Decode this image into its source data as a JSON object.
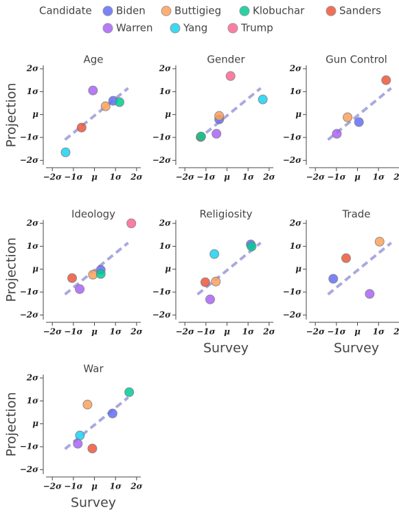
{
  "legend": {
    "title": "Candidate",
    "entries": [
      {
        "name": "Biden",
        "color": "#636efa"
      },
      {
        "name": "Buttigieg",
        "color": "#ffa15a"
      },
      {
        "name": "Klobuchar",
        "color": "#00cc96"
      },
      {
        "name": "Sanders",
        "color": "#ef553b"
      },
      {
        "name": "Warren",
        "color": "#ab63fa"
      },
      {
        "name": "Yang",
        "color": "#19d3f3"
      },
      {
        "name": "Trump",
        "color": "#ff6692"
      }
    ]
  },
  "chart_data": [
    {
      "type": "scatter",
      "title": "Age",
      "ylabel": "Projection",
      "xlim": [
        -2.3,
        2.2
      ],
      "ylim": [
        -2.2,
        2.15
      ],
      "xticks": [
        {
          "value": -2,
          "label": "−2σ"
        },
        {
          "value": -1,
          "label": "−1σ"
        },
        {
          "value": 0,
          "label": "μ"
        },
        {
          "value": 1,
          "label": "1σ"
        },
        {
          "value": 2,
          "label": "2σ"
        }
      ],
      "yticks": [
        {
          "value": -2,
          "label": "−2σ"
        },
        {
          "value": -1,
          "label": "−1σ"
        },
        {
          "value": 0,
          "label": "μ"
        },
        {
          "value": 1,
          "label": "1σ"
        },
        {
          "value": 2,
          "label": "2σ"
        }
      ],
      "fit_line": {
        "x": [
          -1.4,
          1.6
        ],
        "values": [
          -1.1,
          1.15
        ]
      },
      "series": [
        {
          "name": "Warren",
          "x": [
            -0.07
          ],
          "values": [
            1.05
          ]
        },
        {
          "name": "Biden",
          "x": [
            0.89
          ],
          "values": [
            0.6
          ]
        },
        {
          "name": "Buttigieg",
          "x": [
            0.53
          ],
          "values": [
            0.36
          ]
        },
        {
          "name": "Klobuchar",
          "x": [
            1.19
          ],
          "values": [
            0.54
          ]
        },
        {
          "name": "Sanders",
          "x": [
            -0.61
          ],
          "values": [
            -0.57
          ]
        },
        {
          "name": "Yang",
          "x": [
            -1.37
          ],
          "values": [
            -1.65
          ]
        }
      ]
    },
    {
      "type": "scatter",
      "title": "Gender",
      "xlim": [
        -2.3,
        2.2
      ],
      "ylim": [
        -2.2,
        2.15
      ],
      "xticks": [
        {
          "value": -2,
          "label": "−2σ"
        },
        {
          "value": -1,
          "label": "−1σ"
        },
        {
          "value": 0,
          "label": "μ"
        },
        {
          "value": 1,
          "label": "1σ"
        },
        {
          "value": 2,
          "label": "2σ"
        }
      ],
      "yticks": [
        {
          "value": -2,
          "label": "−2σ"
        },
        {
          "value": -1,
          "label": "−1σ"
        },
        {
          "value": 0,
          "label": "μ"
        },
        {
          "value": 1,
          "label": "1σ"
        },
        {
          "value": 2,
          "label": "2σ"
        }
      ],
      "fit_line": {
        "x": [
          -1.4,
          1.6
        ],
        "values": [
          -1.1,
          1.15
        ]
      },
      "series": [
        {
          "name": "Trump",
          "x": [
            0.17
          ],
          "values": [
            1.68
          ]
        },
        {
          "name": "Yang",
          "x": [
            1.7
          ],
          "values": [
            0.66
          ]
        },
        {
          "name": "Biden",
          "x": [
            -0.37
          ],
          "values": [
            -0.21
          ]
        },
        {
          "name": "Buttigieg",
          "x": [
            -0.37
          ],
          "values": [
            -0.06
          ]
        },
        {
          "name": "Warren",
          "x": [
            -0.5
          ],
          "values": [
            -0.84
          ]
        },
        {
          "name": "Sanders",
          "x": [
            -1.25
          ],
          "values": [
            -0.98
          ]
        },
        {
          "name": "Klobuchar",
          "x": [
            -1.23
          ],
          "values": [
            -0.96
          ]
        }
      ]
    },
    {
      "type": "scatter",
      "title": "Gun Control",
      "xlim": [
        -2.3,
        2.2
      ],
      "ylim": [
        -2.2,
        2.15
      ],
      "xticks": [
        {
          "value": -2,
          "label": "−2σ"
        },
        {
          "value": -1,
          "label": "−1σ"
        },
        {
          "value": 0,
          "label": "μ"
        },
        {
          "value": 1,
          "label": "1σ"
        },
        {
          "value": 2,
          "label": "2σ"
        }
      ],
      "yticks": [
        {
          "value": -2,
          "label": "−2σ"
        },
        {
          "value": -1,
          "label": "−1σ"
        },
        {
          "value": 0,
          "label": "μ"
        },
        {
          "value": 1,
          "label": "1σ"
        },
        {
          "value": 2,
          "label": "2σ"
        }
      ],
      "fit_line": {
        "x": [
          -1.4,
          1.6
        ],
        "values": [
          -1.1,
          1.15
        ]
      },
      "series": [
        {
          "name": "Sanders",
          "x": [
            1.36
          ],
          "values": [
            1.5
          ]
        },
        {
          "name": "Buttigieg",
          "x": [
            -0.47
          ],
          "values": [
            -0.12
          ]
        },
        {
          "name": "Biden",
          "x": [
            0.07
          ],
          "values": [
            -0.33
          ]
        },
        {
          "name": "Warren",
          "x": [
            -0.98
          ],
          "values": [
            -0.84
          ]
        }
      ]
    },
    {
      "type": "scatter",
      "title": "Ideology",
      "ylabel": "Projection",
      "xlim": [
        -2.3,
        2.2
      ],
      "ylim": [
        -2.2,
        2.15
      ],
      "xticks": [
        {
          "value": -2,
          "label": "−2σ"
        },
        {
          "value": -1,
          "label": "−1σ"
        },
        {
          "value": 0,
          "label": "μ"
        },
        {
          "value": 1,
          "label": "1σ"
        },
        {
          "value": 2,
          "label": "2σ"
        }
      ],
      "yticks": [
        {
          "value": -2,
          "label": "−2σ"
        },
        {
          "value": -1,
          "label": "−1σ"
        },
        {
          "value": 0,
          "label": "μ"
        },
        {
          "value": 1,
          "label": "1σ"
        },
        {
          "value": 2,
          "label": "2σ"
        }
      ],
      "fit_line": {
        "x": [
          -1.4,
          1.6
        ],
        "values": [
          -1.1,
          1.15
        ]
      },
      "series": [
        {
          "name": "Trump",
          "x": [
            1.75
          ],
          "values": [
            2.0
          ]
        },
        {
          "name": "Biden",
          "x": [
            0.3
          ],
          "values": [
            -0.03
          ]
        },
        {
          "name": "Buttigieg",
          "x": [
            -0.07
          ],
          "values": [
            -0.24
          ]
        },
        {
          "name": "Klobuchar",
          "x": [
            0.3
          ],
          "values": [
            -0.21
          ]
        },
        {
          "name": "Sanders",
          "x": [
            -1.06
          ],
          "values": [
            -0.39
          ]
        },
        {
          "name": "Warren",
          "x": [
            -0.7
          ],
          "values": [
            -0.87
          ]
        }
      ]
    },
    {
      "type": "scatter",
      "title": "Religiosity",
      "xlabel": "Survey",
      "xlim": [
        -2.3,
        2.2
      ],
      "ylim": [
        -2.2,
        2.15
      ],
      "xticks": [
        {
          "value": -2,
          "label": "−2σ"
        },
        {
          "value": -1,
          "label": "−1σ"
        },
        {
          "value": 0,
          "label": "μ"
        },
        {
          "value": 1,
          "label": "1σ"
        },
        {
          "value": 2,
          "label": "2σ"
        }
      ],
      "yticks": [
        {
          "value": -2,
          "label": "−2σ"
        },
        {
          "value": -1,
          "label": "−1σ"
        },
        {
          "value": 0,
          "label": "μ"
        },
        {
          "value": 1,
          "label": "1σ"
        },
        {
          "value": 2,
          "label": "2σ"
        }
      ],
      "fit_line": {
        "x": [
          -1.4,
          1.6
        ],
        "values": [
          -1.1,
          1.15
        ]
      },
      "series": [
        {
          "name": "Biden",
          "x": [
            1.13
          ],
          "values": [
            1.08
          ]
        },
        {
          "name": "Klobuchar",
          "x": [
            1.17
          ],
          "values": [
            0.99
          ]
        },
        {
          "name": "Yang",
          "x": [
            -0.6
          ],
          "values": [
            0.66
          ]
        },
        {
          "name": "Sanders",
          "x": [
            -1.03
          ],
          "values": [
            -0.57
          ]
        },
        {
          "name": "Buttigieg",
          "x": [
            -0.53
          ],
          "values": [
            -0.54
          ]
        },
        {
          "name": "Warren",
          "x": [
            -0.8
          ],
          "values": [
            -1.32
          ]
        }
      ]
    },
    {
      "type": "scatter",
      "title": "Trade",
      "xlabel": "Survey",
      "xlim": [
        -2.3,
        2.2
      ],
      "ylim": [
        -2.2,
        2.15
      ],
      "xticks": [
        {
          "value": -2,
          "label": "−2σ"
        },
        {
          "value": -1,
          "label": "−1σ"
        },
        {
          "value": 0,
          "label": "μ"
        },
        {
          "value": 1,
          "label": "1σ"
        },
        {
          "value": 2,
          "label": "2σ"
        }
      ],
      "yticks": [
        {
          "value": -2,
          "label": "−2σ"
        },
        {
          "value": -1,
          "label": "−1σ"
        },
        {
          "value": 0,
          "label": "μ"
        },
        {
          "value": 1,
          "label": "1σ"
        },
        {
          "value": 2,
          "label": "2σ"
        }
      ],
      "fit_line": {
        "x": [
          -1.4,
          1.6
        ],
        "values": [
          -1.1,
          1.15
        ]
      },
      "series": [
        {
          "name": "Buttigieg",
          "x": [
            1.05
          ],
          "values": [
            1.2
          ]
        },
        {
          "name": "Sanders",
          "x": [
            -0.54
          ],
          "values": [
            0.48
          ]
        },
        {
          "name": "Biden",
          "x": [
            -1.15
          ],
          "values": [
            -0.42
          ]
        },
        {
          "name": "Warren",
          "x": [
            0.58
          ],
          "values": [
            -1.08
          ]
        }
      ]
    },
    {
      "type": "scatter",
      "title": "War",
      "ylabel": "Projection",
      "xlabel": "Survey",
      "xlim": [
        -2.3,
        2.2
      ],
      "ylim": [
        -2.2,
        2.15
      ],
      "xticks": [
        {
          "value": -2,
          "label": "−2σ"
        },
        {
          "value": -1,
          "label": "−1σ"
        },
        {
          "value": 0,
          "label": "μ"
        },
        {
          "value": 1,
          "label": "1σ"
        },
        {
          "value": 2,
          "label": "2σ"
        }
      ],
      "yticks": [
        {
          "value": -2,
          "label": "−2σ"
        },
        {
          "value": -1,
          "label": "−1σ"
        },
        {
          "value": 0,
          "label": "μ"
        },
        {
          "value": 1,
          "label": "1σ"
        },
        {
          "value": 2,
          "label": "2σ"
        }
      ],
      "fit_line": {
        "x": [
          -1.4,
          1.6
        ],
        "values": [
          -1.1,
          1.15
        ]
      },
      "series": [
        {
          "name": "Klobuchar",
          "x": [
            1.65
          ],
          "values": [
            1.38
          ]
        },
        {
          "name": "Buttigieg",
          "x": [
            -0.33
          ],
          "values": [
            0.84
          ]
        },
        {
          "name": "Biden",
          "x": [
            0.86
          ],
          "values": [
            0.45
          ]
        },
        {
          "name": "Yang",
          "x": [
            -0.69
          ],
          "values": [
            -0.51
          ]
        },
        {
          "name": "Warren",
          "x": [
            -0.79
          ],
          "values": [
            -0.87
          ]
        },
        {
          "name": "Sanders",
          "x": [
            -0.1
          ],
          "values": [
            -1.08
          ]
        }
      ]
    }
  ]
}
